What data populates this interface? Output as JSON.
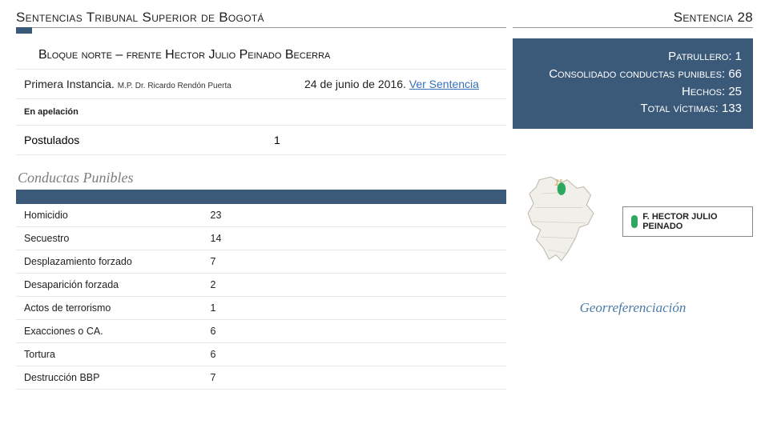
{
  "header": {
    "title_left": "Sentencias Tribunal Superior de Bogotá",
    "title_right_label": "Sentencia",
    "title_right_num": "28"
  },
  "banner": {
    "title": "Bloque norte – frente Hector Julio Peinado Becerra"
  },
  "meta": {
    "rows": [
      {
        "label": "Patrullero:",
        "value": "1"
      },
      {
        "label": "Consolidado conductas punibles:",
        "value": "66"
      },
      {
        "label": "Hechos:",
        "value": "25"
      },
      {
        "label": "Total víctimas:",
        "value": "133"
      }
    ]
  },
  "instancia": {
    "label": "Primera Instancia.",
    "mp": "M.P. Dr. Ricardo Rendón Puerta",
    "date": "24 de junio de 2016.",
    "link_text": "Ver Sentencia"
  },
  "apelacion": "En apelación",
  "postulados": {
    "label": "Postulados",
    "value": "1"
  },
  "conductas": {
    "title": "Conductas Punibles",
    "rows": [
      {
        "name": "Homicidio",
        "count": "23"
      },
      {
        "name": "Secuestro",
        "count": "14"
      },
      {
        "name": "Desplazamiento forzado",
        "count": "7"
      },
      {
        "name": "Desaparición forzada",
        "count": "2"
      },
      {
        "name": "Actos de terrorismo",
        "count": "1"
      },
      {
        "name": "Exacciones o CA.",
        "count": "6"
      },
      {
        "name": "Tortura",
        "count": "6"
      },
      {
        "name": "Destrucción BBP",
        "count": "7"
      }
    ]
  },
  "legend": {
    "label": "F. HECTOR JULIO PEINADO"
  },
  "georef": "Georreferenciación",
  "colors": {
    "brand": "#3b5a7a",
    "link": "#3670b8",
    "legend_green": "#2fa85f",
    "map_fill": "#f1efe9",
    "map_stroke": "#bdb9ac"
  }
}
